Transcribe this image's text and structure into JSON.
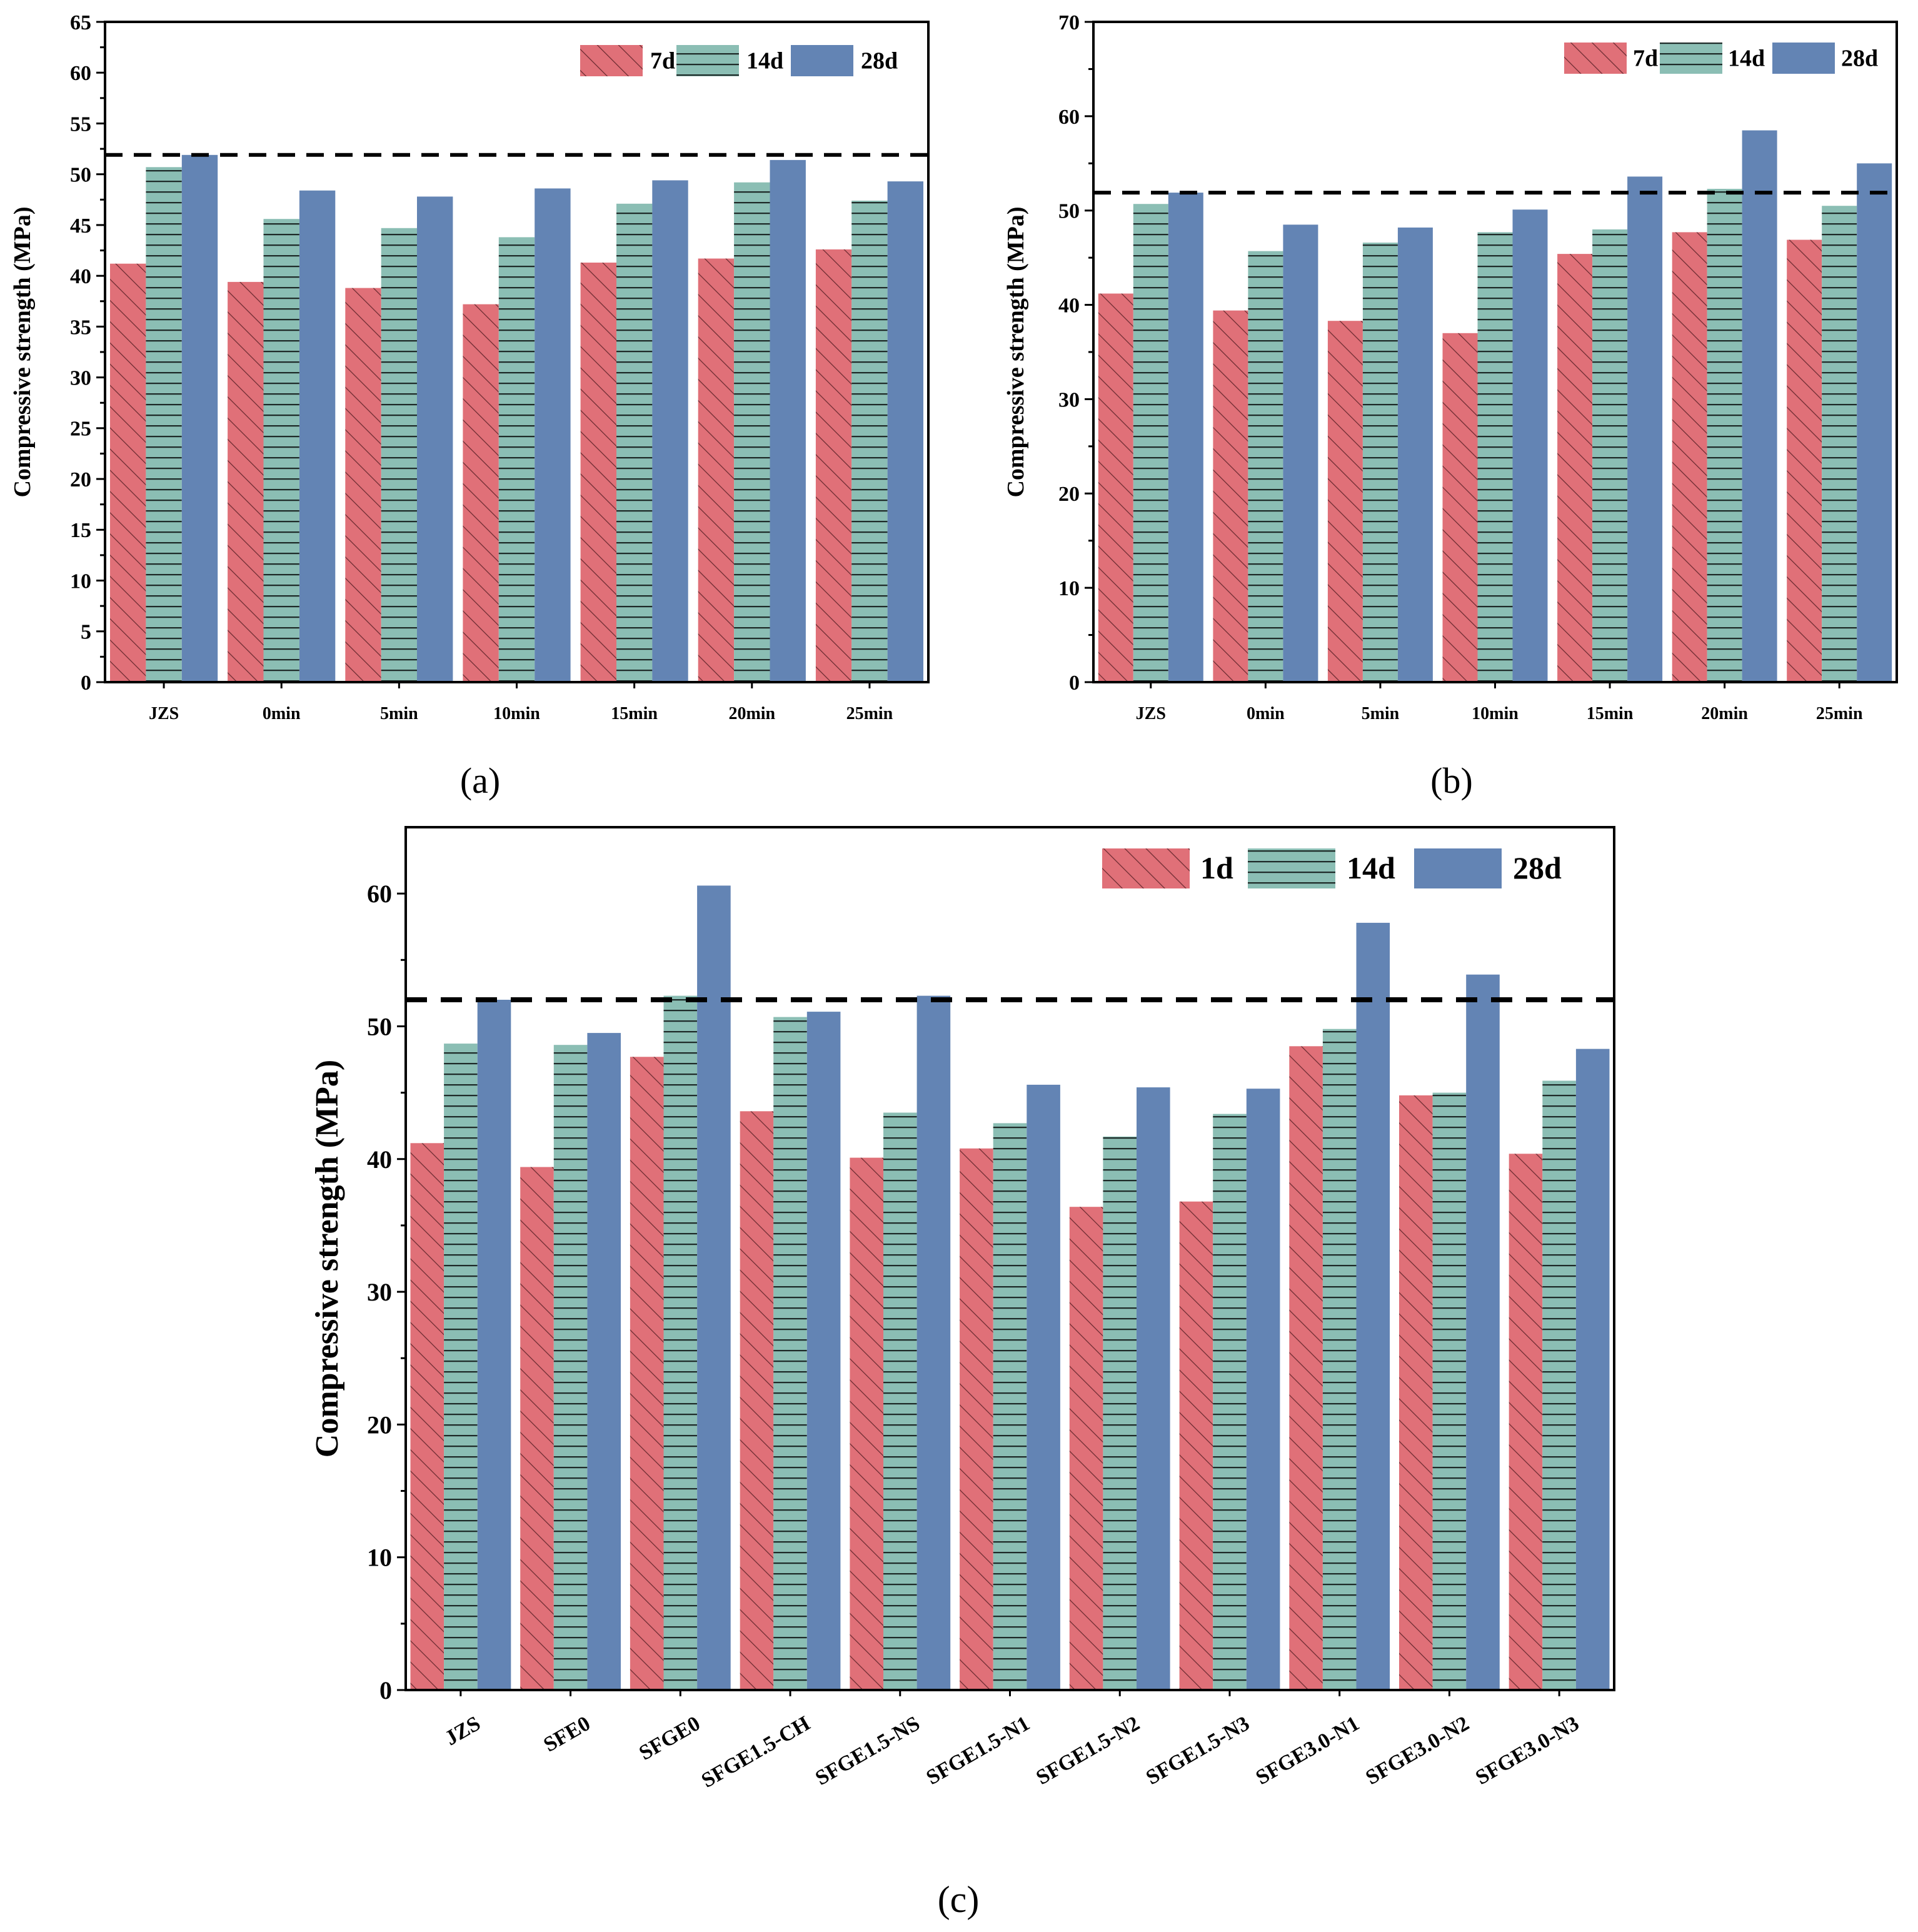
{
  "colors": {
    "series1": "#E07078",
    "series2": "#8BBEB4",
    "series3": "#6384B4",
    "hatch1": "#6a2a30",
    "hatch2": "#1e2a28",
    "axis": "#000000",
    "refline": "#000000"
  },
  "chart_data": [
    {
      "id": "a",
      "type": "bar",
      "panel_label": "(a)",
      "ylabel": "Compressive strength (MPa)",
      "xlabel": "",
      "ylim": [
        0,
        65
      ],
      "yticks": [
        0,
        5,
        10,
        15,
        20,
        25,
        30,
        35,
        40,
        45,
        50,
        55,
        60,
        65
      ],
      "categories": [
        "JZS",
        "0min",
        "5min",
        "10min",
        "15min",
        "20min",
        "25min"
      ],
      "series": [
        {
          "name": "7d",
          "pattern": "diag",
          "values": [
            41.2,
            39.4,
            38.8,
            37.2,
            41.3,
            41.7,
            42.6
          ]
        },
        {
          "name": "14d",
          "pattern": "horiz",
          "values": [
            50.7,
            45.6,
            44.7,
            43.8,
            47.1,
            49.2,
            47.4
          ]
        },
        {
          "name": "28d",
          "pattern": "solid",
          "values": [
            51.9,
            48.4,
            47.8,
            48.6,
            49.4,
            51.4,
            49.3
          ]
        }
      ],
      "reference_line": 51.9,
      "legend_position": "top-right"
    },
    {
      "id": "b",
      "type": "bar",
      "panel_label": "(b)",
      "ylabel": "Compressive strength (MPa)",
      "xlabel": "",
      "ylim": [
        0,
        70
      ],
      "yticks": [
        0,
        10,
        20,
        30,
        40,
        50,
        60,
        70
      ],
      "categories": [
        "JZS",
        "0min",
        "5min",
        "10min",
        "15min",
        "20min",
        "25min"
      ],
      "series": [
        {
          "name": "7d",
          "pattern": "diag",
          "values": [
            41.2,
            39.4,
            38.3,
            37.0,
            45.4,
            47.7,
            46.9
          ]
        },
        {
          "name": "14d",
          "pattern": "horiz",
          "values": [
            50.7,
            45.7,
            46.6,
            47.7,
            48.0,
            52.3,
            50.5
          ]
        },
        {
          "name": "28d",
          "pattern": "solid",
          "values": [
            51.9,
            48.5,
            48.2,
            50.1,
            53.6,
            58.5,
            55.0
          ]
        }
      ],
      "reference_line": 51.9,
      "legend_position": "top-right"
    },
    {
      "id": "c",
      "type": "bar",
      "panel_label": "(c)",
      "ylabel": "Compressive strength (MPa)",
      "xlabel": "",
      "ylim": [
        0,
        65
      ],
      "yticks": [
        0,
        10,
        20,
        30,
        40,
        50,
        60
      ],
      "categories": [
        "JZS",
        "SFE0",
        "SFGE0",
        "SFGE1.5-CH",
        "SFGE1.5-NS",
        "SFGE1.5-N1",
        "SFGE1.5-N2",
        "SFGE1.5-N3",
        "SFGE3.0-N1",
        "SFGE3.0-N2",
        "SFGE3.0-N3"
      ],
      "series": [
        {
          "name": "1d",
          "pattern": "diag",
          "values": [
            41.2,
            39.4,
            47.7,
            43.6,
            40.1,
            40.8,
            36.4,
            36.8,
            48.5,
            44.8,
            40.4
          ]
        },
        {
          "name": "14d",
          "pattern": "horiz",
          "values": [
            48.7,
            48.6,
            52.3,
            50.7,
            43.5,
            42.7,
            41.7,
            43.4,
            49.8,
            45.0,
            45.9
          ]
        },
        {
          "name": "28d",
          "pattern": "solid",
          "values": [
            52.0,
            49.5,
            60.6,
            51.1,
            52.3,
            45.6,
            45.4,
            45.3,
            57.8,
            53.9,
            48.3
          ]
        }
      ],
      "reference_line": 52.0,
      "legend_position": "top-right"
    }
  ]
}
